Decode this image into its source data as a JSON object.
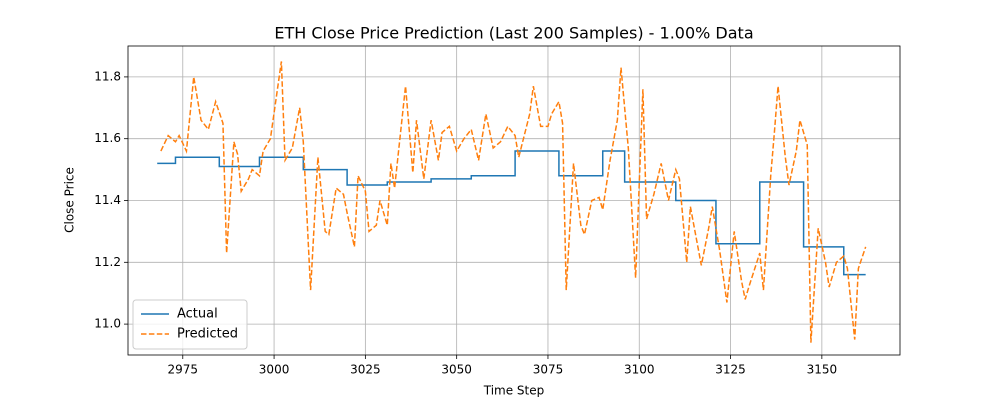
{
  "chart_data": {
    "type": "line",
    "title": "ETH Close Price Prediction (Last 200 Samples) - 1.00% Data",
    "xlabel": "Time Step",
    "ylabel": "Close Price",
    "xlim": [
      2960,
      3171.4
    ],
    "ylim": [
      10.9,
      11.9
    ],
    "xticks": [
      2975,
      3000,
      3025,
      3050,
      3075,
      3100,
      3125,
      3150
    ],
    "yticks": [
      {
        "value": 11,
        "label": "11.0"
      },
      11.2,
      11.4,
      11.6,
      11.8
    ],
    "grid": true,
    "legend": "lower left",
    "series": [
      {
        "name": "Actual",
        "color": "#1f77b4",
        "dash": "solid",
        "x": [
          2968,
          2973,
          2973,
          2985,
          2985,
          2996,
          2996,
          3008,
          3008,
          3020,
          3020,
          3031,
          3031,
          3043,
          3043,
          3054,
          3054,
          3066,
          3066,
          3078,
          3078,
          3090,
          3090,
          3096,
          3096,
          3110,
          3110,
          3121,
          3121,
          3133,
          3133,
          3145,
          3145,
          3156,
          3156,
          3162
        ],
        "values": [
          11.52,
          11.52,
          11.54,
          11.54,
          11.51,
          11.51,
          11.54,
          11.54,
          11.5,
          11.5,
          11.45,
          11.45,
          11.46,
          11.46,
          11.47,
          11.47,
          11.48,
          11.48,
          11.56,
          11.56,
          11.48,
          11.48,
          11.56,
          11.56,
          11.46,
          11.46,
          11.4,
          11.4,
          11.26,
          11.26,
          11.46,
          11.46,
          11.25,
          11.25,
          11.16,
          11.16
        ]
      },
      {
        "name": "Predicted",
        "color": "#ff7f0e",
        "dash": "dashed",
        "x": [
          2969,
          2971,
          2973,
          2974,
          2976,
          2978,
          2980,
          2982,
          2984,
          2986,
          2987,
          2989,
          2990,
          2991,
          2993,
          2994,
          2996,
          2997,
          2999,
          3002,
          3003,
          3005,
          3007,
          3008,
          3010,
          3012,
          3014,
          3015,
          3017,
          3019,
          3020,
          3022,
          3023,
          3025,
          3026,
          3028,
          3029,
          3031,
          3032,
          3033,
          3036,
          3038,
          3039,
          3041,
          3043,
          3045,
          3046,
          3048,
          3050,
          3052,
          3054,
          3056,
          3058,
          3060,
          3062,
          3064,
          3066,
          3067,
          3070,
          3071,
          3073,
          3075,
          3076,
          3078,
          3079,
          3080,
          3082,
          3084,
          3085,
          3087,
          3089,
          3090,
          3092,
          3094,
          3095,
          3097,
          3099,
          3101,
          3102,
          3104,
          3106,
          3108,
          3110,
          3111,
          3113,
          3114,
          3117,
          3119,
          3120,
          3122,
          3124,
          3126,
          3128,
          3129,
          3130,
          3133,
          3134,
          3136,
          3137,
          3138,
          3140,
          3141,
          3143,
          3144,
          3146,
          3147,
          3149,
          3151,
          3152,
          3154,
          3156,
          3157,
          3159,
          3160,
          3162
        ],
        "values": [
          11.56,
          11.61,
          11.59,
          11.61,
          11.56,
          11.8,
          11.66,
          11.63,
          11.72,
          11.65,
          11.23,
          11.59,
          11.55,
          11.43,
          11.47,
          11.5,
          11.48,
          11.56,
          11.6,
          11.85,
          11.53,
          11.57,
          11.7,
          11.59,
          11.11,
          11.54,
          11.3,
          11.29,
          11.44,
          11.42,
          11.36,
          11.25,
          11.48,
          11.43,
          11.3,
          11.32,
          11.4,
          11.32,
          11.52,
          11.44,
          11.77,
          11.49,
          11.66,
          11.47,
          11.66,
          11.53,
          11.62,
          11.64,
          11.56,
          11.6,
          11.63,
          11.53,
          11.68,
          11.57,
          11.59,
          11.64,
          11.61,
          11.54,
          11.68,
          11.77,
          11.64,
          11.64,
          11.68,
          11.72,
          11.65,
          11.11,
          11.52,
          11.32,
          11.29,
          11.4,
          11.41,
          11.37,
          11.53,
          11.66,
          11.83,
          11.57,
          11.15,
          11.76,
          11.34,
          11.42,
          11.52,
          11.4,
          11.5,
          11.47,
          11.2,
          11.38,
          11.19,
          11.31,
          11.38,
          11.24,
          11.07,
          11.3,
          11.14,
          11.08,
          11.12,
          11.23,
          11.11,
          11.48,
          11.62,
          11.77,
          11.54,
          11.45,
          11.56,
          11.66,
          11.58,
          10.94,
          11.31,
          11.2,
          11.12,
          11.2,
          11.22,
          11.18,
          10.95,
          11.18,
          11.25
        ]
      }
    ]
  }
}
